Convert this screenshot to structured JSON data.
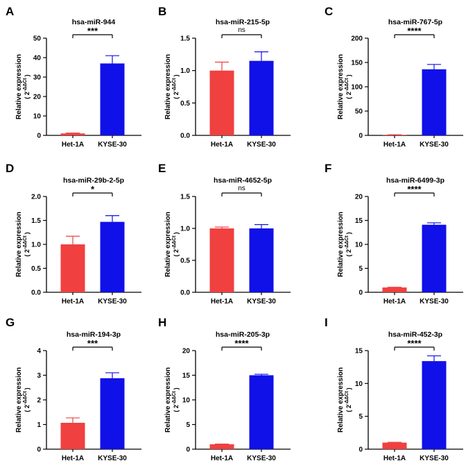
{
  "colors": {
    "het": "#f04040",
    "kyse": "#1010e8",
    "axis": "#000000"
  },
  "ylabel_main": "Relative expression",
  "ylabel_formula": "( 2",
  "ylabel_exponent": "-ΔΔCt",
  "ylabel_close": ")",
  "chart_data": [
    {
      "panel": "A",
      "type": "bar",
      "title": "hsa-miR-944",
      "categories": [
        "Het-1A",
        "KYSE-30"
      ],
      "values": [
        1.0,
        37.0
      ],
      "errors": [
        0.2,
        4.0
      ],
      "ylim": [
        0,
        50
      ],
      "yticks": [
        "0",
        "10",
        "20",
        "30",
        "40",
        "50"
      ],
      "significance": "***",
      "xlabel": "",
      "ylabel": "Relative expression ( 2^-ΔΔCt )"
    },
    {
      "panel": "B",
      "type": "bar",
      "title": "hsa-miR-215-5p",
      "categories": [
        "Het-1A",
        "KYSE-30"
      ],
      "values": [
        1.0,
        1.15
      ],
      "errors": [
        0.13,
        0.14
      ],
      "ylim": [
        0,
        1.5
      ],
      "yticks": [
        "0.0",
        "0.5",
        "1.0",
        "1.5"
      ],
      "significance": "ns",
      "xlabel": "",
      "ylabel": "Relative expression ( 2^-ΔΔCt )"
    },
    {
      "panel": "C",
      "type": "bar",
      "title": "hsa-miR-767-5p",
      "categories": [
        "Het-1A",
        "KYSE-30"
      ],
      "values": [
        1.0,
        136
      ],
      "errors": [
        0.3,
        10
      ],
      "ylim": [
        0,
        200
      ],
      "yticks": [
        "0",
        "50",
        "100",
        "150",
        "200"
      ],
      "significance": "****",
      "xlabel": "",
      "ylabel": "Relative expression ( 2^-ΔΔCt )"
    },
    {
      "panel": "D",
      "type": "bar",
      "title": "hsa-miR-29b-2-5p",
      "categories": [
        "Het-1A",
        "KYSE-30"
      ],
      "values": [
        1.0,
        1.47
      ],
      "errors": [
        0.17,
        0.13
      ],
      "ylim": [
        0,
        2.0
      ],
      "yticks": [
        "0.0",
        "0.5",
        "1.0",
        "1.5",
        "2.0"
      ],
      "significance": "*",
      "xlabel": "",
      "ylabel": "Relative expression ( 2^-ΔΔCt )"
    },
    {
      "panel": "E",
      "type": "bar",
      "title": "hsa-miR-4652-5p",
      "categories": [
        "Het-1A",
        "KYSE-30"
      ],
      "values": [
        1.0,
        1.0
      ],
      "errors": [
        0.02,
        0.06
      ],
      "ylim": [
        0,
        1.5
      ],
      "yticks": [
        "0.0",
        "0.5",
        "1.0",
        "1.5"
      ],
      "significance": "ns",
      "xlabel": "",
      "ylabel": "Relative expression ( 2^-ΔΔCt )"
    },
    {
      "panel": "F",
      "type": "bar",
      "title": "hsa-miR-6499-3p",
      "categories": [
        "Het-1A",
        "KYSE-30"
      ],
      "values": [
        1.0,
        14.1
      ],
      "errors": [
        0.05,
        0.4
      ],
      "ylim": [
        0,
        20
      ],
      "yticks": [
        "0",
        "5",
        "10",
        "15",
        "20"
      ],
      "significance": "****",
      "xlabel": "",
      "ylabel": "Relative expression ( 2^-ΔΔCt )"
    },
    {
      "panel": "G",
      "type": "bar",
      "title": "hsa-miR-194-3p",
      "categories": [
        "Het-1A",
        "KYSE-30"
      ],
      "values": [
        1.07,
        2.88
      ],
      "errors": [
        0.2,
        0.22
      ],
      "ylim": [
        0,
        4
      ],
      "yticks": [
        "0",
        "1",
        "2",
        "3",
        "4"
      ],
      "significance": "***",
      "xlabel": "",
      "ylabel": "Relative expression ( 2^-ΔΔCt )"
    },
    {
      "panel": "H",
      "type": "bar",
      "title": "hsa-miR-205-3p",
      "categories": [
        "Het-1A",
        "KYSE-30"
      ],
      "values": [
        1.0,
        15.0
      ],
      "errors": [
        0.05,
        0.2
      ],
      "ylim": [
        0,
        20
      ],
      "yticks": [
        "0",
        "5",
        "10",
        "15",
        "20"
      ],
      "significance": "****",
      "xlabel": "",
      "ylabel": "Relative expression ( 2^-ΔΔCt )"
    },
    {
      "panel": "I",
      "type": "bar",
      "title": "hsa-miR-452-3p",
      "categories": [
        "Het-1A",
        "KYSE-30"
      ],
      "values": [
        1.0,
        13.4
      ],
      "errors": [
        0.05,
        0.8
      ],
      "ylim": [
        0,
        15
      ],
      "yticks": [
        "0",
        "5",
        "10",
        "15"
      ],
      "significance": "****",
      "xlabel": "",
      "ylabel": "Relative expression ( 2^-ΔΔCt )"
    }
  ]
}
